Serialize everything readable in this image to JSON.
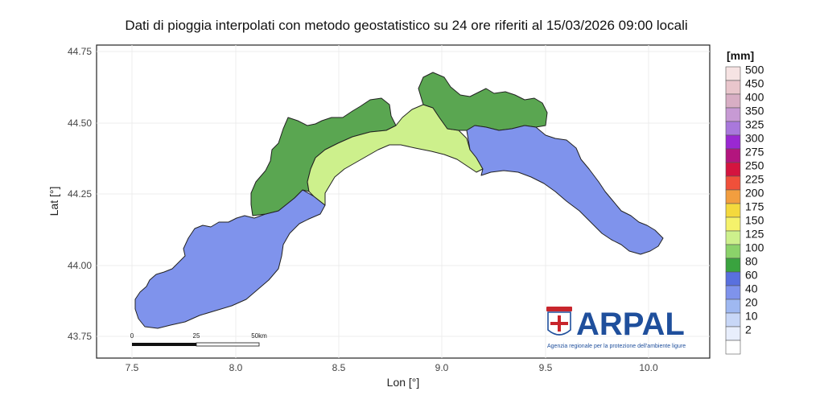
{
  "title": "Dati di pioggia interpolati con metodo geostatistico su 24 ore riferiti al 15/03/2026 09:00 locali",
  "axes": {
    "xlabel": "Lon [°]",
    "ylabel": "Lat [°]",
    "x_ticks": [
      "7.5",
      "8.0",
      "8.5",
      "9.0",
      "9.5",
      "10.0"
    ],
    "y_ticks": [
      "44.75",
      "44.50",
      "44.25",
      "44.00",
      "43.75"
    ]
  },
  "legend": {
    "title": "[mm]",
    "items": [
      {
        "label": "500",
        "color": "#f6e3e3"
      },
      {
        "label": "450",
        "color": "#e9c6cc"
      },
      {
        "label": "400",
        "color": "#d8aec4"
      },
      {
        "label": "350",
        "color": "#c79ad4"
      },
      {
        "label": "325",
        "color": "#a978dc"
      },
      {
        "label": "300",
        "color": "#9a28d2"
      },
      {
        "label": "275",
        "color": "#b3157e"
      },
      {
        "label": "250",
        "color": "#d4143f"
      },
      {
        "label": "225",
        "color": "#f0503a"
      },
      {
        "label": "200",
        "color": "#f29e3f"
      },
      {
        "label": "175",
        "color": "#f4d93d"
      },
      {
        "label": "150",
        "color": "#f5f26b"
      },
      {
        "label": "125",
        "color": "#cdf08c"
      },
      {
        "label": "100",
        "color": "#8bd26a"
      },
      {
        "label": "80",
        "color": "#3aa33f"
      },
      {
        "label": "60",
        "color": "#5970de"
      },
      {
        "label": "40",
        "color": "#7f93ec"
      },
      {
        "label": "20",
        "color": "#9fb8f1"
      },
      {
        "label": "10",
        "color": "#c8d7f7"
      },
      {
        "label": "2",
        "color": "#e8eefc"
      },
      {
        "label": "",
        "color": "#ffffff"
      }
    ]
  },
  "regions": {
    "west_low": {
      "color": "#7f93ec",
      "class": "40"
    },
    "west_mountain": {
      "color": "#5aa651",
      "class": "80"
    },
    "central_coast": {
      "color": "#cdf08c",
      "class": "125"
    },
    "central_north": {
      "color": "#5aa651",
      "class": "80"
    },
    "east": {
      "color": "#7f93ec",
      "class": "40"
    }
  },
  "scalebar": {
    "labels": [
      "0",
      "25",
      "50km"
    ]
  },
  "logo": {
    "name": "ARPAL",
    "subtitle": "Agenzia regionale per la protezione dell'ambiente ligure"
  }
}
